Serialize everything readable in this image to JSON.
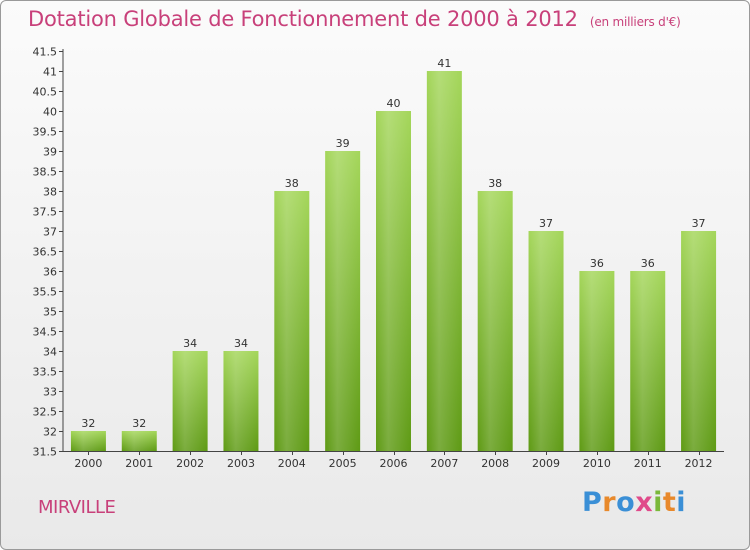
{
  "header": {
    "title": "Dotation Globale de Fonctionnement de 2000 à 2012",
    "subtitle": "(en milliers d'€)"
  },
  "commune": "MIRVILLE",
  "logo": {
    "letters": [
      "P",
      "r",
      "o",
      "x",
      "i",
      "t",
      "i"
    ],
    "colors": [
      "#3a8fd6",
      "#e8892b",
      "#3a8fd6",
      "#e04a8a",
      "#7ab83a",
      "#e8892b",
      "#3a8fd6"
    ]
  },
  "colors": {
    "title": "#c8407a",
    "bar_light": "#a4d65a",
    "bar_dark": "#5e9a14",
    "axis": "#444444",
    "grid": "#d0d0d0"
  },
  "chart_data": {
    "type": "bar",
    "title": "Dotation Globale de Fonctionnement de 2000 à 2012",
    "subtitle": "(en milliers d'€)",
    "xlabel": "",
    "ylabel": "",
    "categories": [
      "2000",
      "2001",
      "2002",
      "2003",
      "2004",
      "2005",
      "2006",
      "2007",
      "2008",
      "2009",
      "2010",
      "2011",
      "2012"
    ],
    "values": [
      32,
      32,
      34,
      34,
      38,
      39,
      40,
      41,
      38,
      37,
      36,
      36,
      37
    ],
    "ylim": [
      31.5,
      41.5
    ],
    "yticks": [
      "31.5",
      "32",
      "32.5",
      "33",
      "33.5",
      "34",
      "34.5",
      "35",
      "35.5",
      "36",
      "36.5",
      "37",
      "37.5",
      "38",
      "38.5",
      "39",
      "39.5",
      "40",
      "40.5",
      "41",
      "41.5"
    ],
    "grid": "none",
    "legend": "none"
  }
}
